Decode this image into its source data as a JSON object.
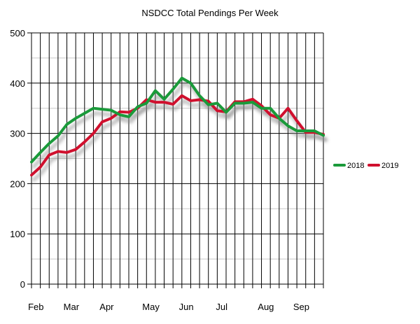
{
  "chart_data": {
    "type": "line",
    "title": "NSDCC Total Pendings Per Week",
    "xlabel": "",
    "ylabel": "",
    "ylim": [
      0,
      500
    ],
    "yticks": [
      0,
      100,
      200,
      300,
      400,
      500
    ],
    "grid": true,
    "legend_position": "right",
    "x_labels": [
      {
        "week": 1,
        "label": "Feb"
      },
      {
        "week": 5,
        "label": "Mar"
      },
      {
        "week": 9,
        "label": "Apr"
      },
      {
        "week": 14,
        "label": "May"
      },
      {
        "week": 18,
        "label": "Jun"
      },
      {
        "week": 22,
        "label": "Jul"
      },
      {
        "week": 27,
        "label": "Aug"
      },
      {
        "week": 31,
        "label": "Sep"
      }
    ],
    "series": [
      {
        "name": "2018",
        "color": "#1a9a3a",
        "values": [
          243,
          262,
          280,
          295,
          318,
          330,
          340,
          350,
          348,
          346,
          337,
          333,
          353,
          360,
          385,
          368,
          388,
          410,
          400,
          375,
          357,
          360,
          342,
          360,
          360,
          362,
          350,
          350,
          330,
          315,
          305,
          305,
          305,
          296
        ]
      },
      {
        "name": "2019",
        "color": "#d0102e",
        "values": [
          217,
          233,
          257,
          264,
          262,
          268,
          283,
          300,
          323,
          330,
          343,
          342,
          350,
          367,
          362,
          362,
          358,
          375,
          365,
          367,
          364,
          345,
          343,
          363,
          363,
          368,
          355,
          337,
          330,
          350,
          325,
          302,
          302,
          298
        ]
      }
    ]
  }
}
